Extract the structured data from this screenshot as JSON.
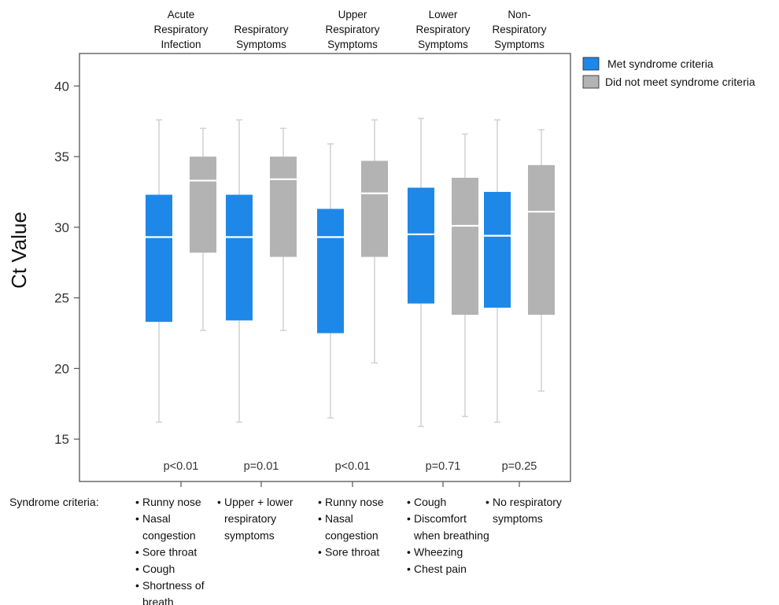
{
  "chart_data": {
    "type": "boxplot",
    "ylabel": "Ct Value",
    "ylim": [
      12,
      42.3
    ],
    "yticks": [
      "15",
      "20",
      "25",
      "30",
      "35",
      "40"
    ],
    "colors": {
      "met": "#1e88e8",
      "not_met": "#b3b3b3",
      "whisker": "#d4d4d4",
      "median": "#ffffff",
      "frame": "#555555"
    },
    "legend": {
      "position": "top-right",
      "items": [
        {
          "label": "Met syndrome criteria",
          "color": "#1e88e8"
        },
        {
          "label": "Did not meet syndrome criteria",
          "color": "#b3b3b3"
        }
      ]
    },
    "criteria_label": "Syndrome criteria:",
    "groups": [
      {
        "title": [
          "Acute",
          "Respiratory",
          "Infection"
        ],
        "p_value": "p<0.01",
        "criteria": [
          [
            "Runny nose"
          ],
          [
            "Nasal",
            "congestion"
          ],
          [
            "Sore throat"
          ],
          [
            "Cough"
          ],
          [
            "Shortness of",
            "breath"
          ]
        ],
        "met": {
          "min": 16.2,
          "q1": 23.3,
          "median": 29.3,
          "q3": 32.3,
          "max": 37.6
        },
        "not_met": {
          "min": 22.7,
          "q1": 28.2,
          "median": 33.3,
          "q3": 35.0,
          "max": 37.0
        }
      },
      {
        "title": [
          "Respiratory",
          "Symptoms"
        ],
        "p_value": "p=0.01",
        "criteria": [
          [
            "Upper + lower",
            "respiratory",
            "symptoms"
          ]
        ],
        "met": {
          "min": 16.2,
          "q1": 23.4,
          "median": 29.3,
          "q3": 32.3,
          "max": 37.6
        },
        "not_met": {
          "min": 22.7,
          "q1": 27.9,
          "median": 33.4,
          "q3": 35.0,
          "max": 37.0
        }
      },
      {
        "title": [
          "Upper",
          "Respiratory",
          "Symptoms"
        ],
        "p_value": "p<0.01",
        "criteria": [
          [
            "Runny nose"
          ],
          [
            "Nasal",
            "congestion"
          ],
          [
            "Sore throat"
          ]
        ],
        "met": {
          "min": 16.5,
          "q1": 22.5,
          "median": 29.3,
          "q3": 31.3,
          "max": 35.9
        },
        "not_met": {
          "min": 20.4,
          "q1": 27.9,
          "median": 32.4,
          "q3": 34.7,
          "max": 37.6
        }
      },
      {
        "title": [
          "Lower",
          "Respiratory",
          "Symptoms"
        ],
        "p_value": "p=0.71",
        "criteria": [
          [
            "Cough"
          ],
          [
            "Discomfort",
            "when breathing"
          ],
          [
            "Wheezing"
          ],
          [
            "Chest pain"
          ]
        ],
        "met": {
          "min": 15.9,
          "q1": 24.6,
          "median": 29.5,
          "q3": 32.8,
          "max": 37.7
        },
        "not_met": {
          "min": 16.6,
          "q1": 23.8,
          "median": 30.1,
          "q3": 33.5,
          "max": 36.6
        }
      },
      {
        "title": [
          "Non-",
          "Respiratory",
          "Symptoms"
        ],
        "p_value": "p=0.25",
        "criteria": [
          [
            "No respiratory",
            "symptoms"
          ]
        ],
        "met": {
          "min": 16.2,
          "q1": 24.3,
          "median": 29.4,
          "q3": 32.5,
          "max": 37.6
        },
        "not_met": {
          "min": 18.4,
          "q1": 23.8,
          "median": 31.1,
          "q3": 34.4,
          "max": 36.9
        }
      }
    ]
  }
}
